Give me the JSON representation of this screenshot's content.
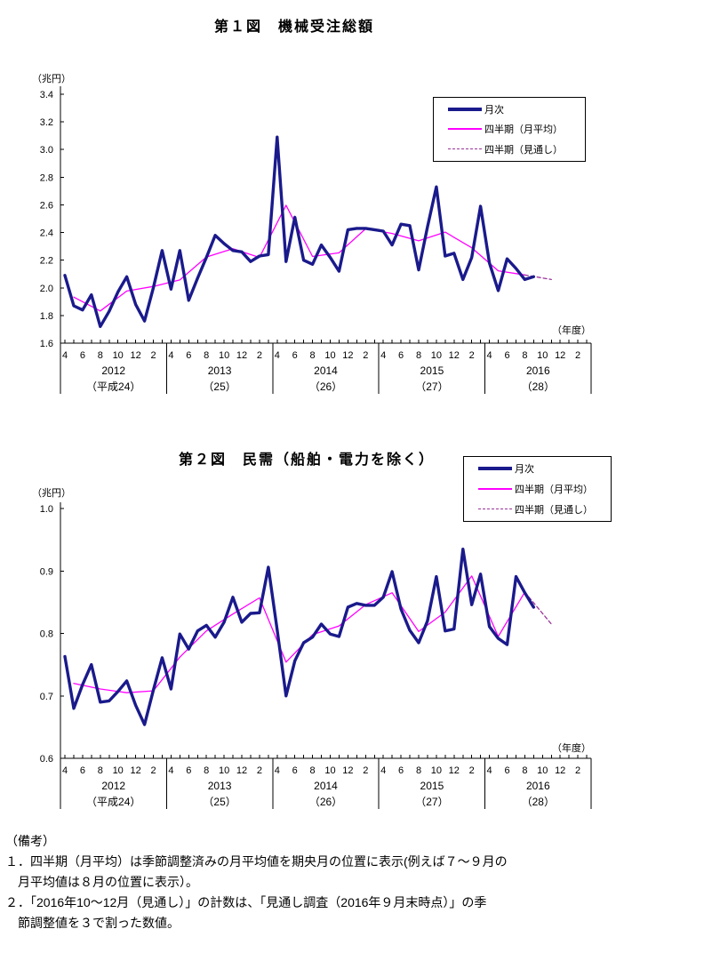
{
  "colors": {
    "monthly": "#1a1a8c",
    "quarterly": "#ff00ff",
    "forecast": "#993399",
    "axis": "#000000",
    "background": "#ffffff"
  },
  "charts": [
    {
      "id": "fig1",
      "title": "第１図　機械受注総額",
      "unit_label": "（兆円）",
      "axis_unit_label": "（年度）",
      "legend": [
        "月次",
        "四半期（月平均）",
        "四半期（見通し）"
      ],
      "y_axis": {
        "tick_labels": [
          "1.6",
          "1.8",
          "2.0",
          "2.2",
          "2.4",
          "2.6",
          "2.8",
          "3.0",
          "3.2",
          "3.4"
        ]
      },
      "x_axis": {
        "month_tick_labels": [
          "4",
          "6",
          "8",
          "10",
          "12",
          "2"
        ],
        "years": [
          {
            "year": "2012",
            "era": "（平成24）"
          },
          {
            "year": "2013",
            "era": "（25）"
          },
          {
            "year": "2014",
            "era": "（26）"
          },
          {
            "year": "2015",
            "era": "（27）"
          },
          {
            "year": "2016",
            "era": "（28）"
          }
        ]
      },
      "chart_data": {
        "type": "line",
        "title": "第１図　機械受注総額",
        "ylabel": "兆円",
        "ylim": [
          1.6,
          3.4
        ],
        "ytick_step": 0.2,
        "x_start_month": "2012-04",
        "x_month_count": 54,
        "series": [
          {
            "name": "月次",
            "style": "monthly",
            "values": [
              2.09,
              1.87,
              1.84,
              1.95,
              1.72,
              1.83,
              1.97,
              2.08,
              1.88,
              1.76,
              2.0,
              2.27,
              1.99,
              2.27,
              1.91,
              2.07,
              2.22,
              2.38,
              2.32,
              2.27,
              2.26,
              2.19,
              2.23,
              2.24,
              3.09,
              2.19,
              2.51,
              2.2,
              2.17,
              2.31,
              2.22,
              2.12,
              2.42,
              2.43,
              2.43,
              2.42,
              2.41,
              2.31,
              2.46,
              2.45,
              2.13,
              2.44,
              2.73,
              2.23,
              2.25,
              2.06,
              2.22,
              2.59,
              2.18,
              1.98,
              2.21,
              2.14,
              2.06,
              2.08
            ]
          },
          {
            "name": "四半期（月平均）",
            "style": "quarterly",
            "month_offsets": [
              1,
              4,
              7,
              10,
              13,
              16,
              19,
              22,
              25,
              28,
              31,
              34,
              37,
              40,
              43,
              46,
              49,
              52
            ],
            "values": [
              1.933,
              1.833,
              1.977,
              2.01,
              2.057,
              2.223,
              2.283,
              2.22,
              2.597,
              2.227,
              2.253,
              2.427,
              2.393,
              2.34,
              2.403,
              2.29,
              2.123,
              2.093
            ]
          },
          {
            "name": "四半期（見通し）",
            "style": "forecast",
            "month_offsets": [
              52,
              55
            ],
            "values": [
              2.093,
              2.06
            ]
          }
        ]
      }
    },
    {
      "id": "fig2",
      "title": "第２図　民需（船舶・電力を除く）",
      "unit_label": "（兆円）",
      "axis_unit_label": "（年度）",
      "legend": [
        "月次",
        "四半期（月平均）",
        "四半期（見通し）"
      ],
      "y_axis": {
        "tick_labels": [
          "0.6",
          "0.7",
          "0.8",
          "0.9",
          "1.0"
        ]
      },
      "x_axis": {
        "month_tick_labels": [
          "4",
          "6",
          "8",
          "10",
          "12",
          "2"
        ],
        "years": [
          {
            "year": "2012",
            "era": "（平成24）"
          },
          {
            "year": "2013",
            "era": "（25）"
          },
          {
            "year": "2014",
            "era": "（26）"
          },
          {
            "year": "2015",
            "era": "（27）"
          },
          {
            "year": "2016",
            "era": "（28）"
          }
        ]
      },
      "chart_data": {
        "type": "line",
        "title": "第２図　民需（船舶・電力を除く）",
        "ylabel": "兆円",
        "ylim": [
          0.6,
          1.0
        ],
        "ytick_step": 0.1,
        "x_start_month": "2012-04",
        "x_month_count": 54,
        "series": [
          {
            "name": "月次",
            "style": "monthly",
            "values": [
              0.763,
              0.68,
              0.718,
              0.75,
              0.69,
              0.692,
              0.707,
              0.724,
              0.685,
              0.654,
              0.709,
              0.761,
              0.711,
              0.799,
              0.775,
              0.804,
              0.813,
              0.794,
              0.818,
              0.858,
              0.818,
              0.832,
              0.833,
              0.906,
              0.806,
              0.7,
              0.756,
              0.785,
              0.794,
              0.815,
              0.799,
              0.795,
              0.842,
              0.848,
              0.845,
              0.845,
              0.858,
              0.899,
              0.839,
              0.805,
              0.785,
              0.82,
              0.891,
              0.804,
              0.807,
              0.935,
              0.846,
              0.895,
              0.811,
              0.792,
              0.782,
              0.891,
              0.865,
              0.842
            ]
          },
          {
            "name": "四半期（月平均）",
            "style": "quarterly",
            "month_offsets": [
              1,
              4,
              7,
              10,
              13,
              16,
              19,
              22,
              25,
              28,
              31,
              34,
              37,
              40,
              43,
              46,
              49,
              52
            ],
            "values": [
              0.72,
              0.711,
              0.705,
              0.708,
              0.762,
              0.804,
              0.831,
              0.857,
              0.754,
              0.798,
              0.812,
              0.846,
              0.865,
              0.803,
              0.834,
              0.892,
              0.795,
              0.866
            ]
          },
          {
            "name": "四半期（見通し）",
            "style": "forecast",
            "month_offsets": [
              52,
              55
            ],
            "values": [
              0.866,
              0.815
            ]
          }
        ]
      }
    }
  ],
  "notes": {
    "heading": "（備考）",
    "lines": [
      "１．四半期（月平均）は季節調整済みの月平均値を期央月の位置に表示(例えば７～９月の",
      "　月平均値は８月の位置に表示）。",
      "２．「2016年10～12月（見通し）」の計数は、「見通し調査（2016年９月末時点）」の季",
      "　節調整値を３で割った数値。"
    ]
  }
}
